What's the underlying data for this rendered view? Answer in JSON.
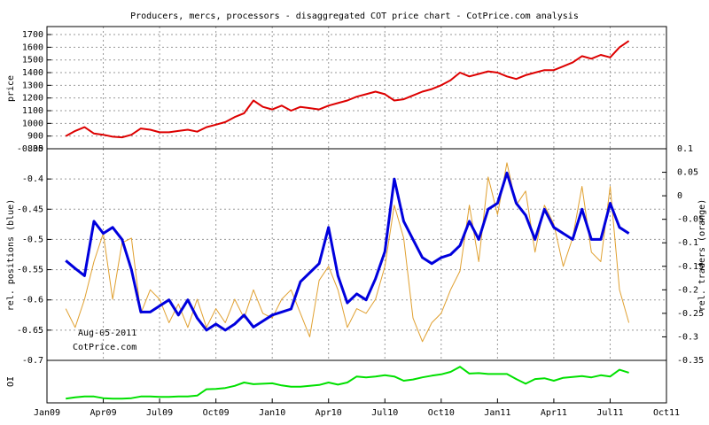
{
  "chart_data": [
    {
      "type": "line",
      "title": "Producers, mercs, processors - disaggregated COT price chart - CotPrice.com analysis",
      "ylabel": "price",
      "x": [
        1,
        1.5,
        2,
        2.5,
        3,
        3.5,
        4,
        4.5,
        5,
        5.5,
        6,
        6.5,
        7,
        7.5,
        8,
        8.5,
        9,
        9.5,
        10,
        10.5,
        11,
        11.5,
        12,
        12.5,
        13,
        13.5,
        14,
        14.5,
        15,
        15.5,
        16,
        16.5,
        17,
        17.5,
        18,
        18.5,
        19,
        19.5,
        20,
        20.5,
        21,
        21.5,
        22,
        22.5,
        23,
        23.5,
        24,
        24.5,
        25,
        25.5,
        26,
        26.5,
        27,
        27.5,
        28,
        28.5,
        29,
        29.5,
        30,
        30.5,
        31
      ],
      "xlim": [
        0,
        33
      ],
      "ylim": [
        800,
        1763
      ],
      "yticks": [
        800,
        900,
        1000,
        1100,
        1200,
        1300,
        1400,
        1500,
        1600,
        1700
      ],
      "grid": true,
      "series": [
        {
          "color": "#dd0000",
          "values": [
            900,
            940,
            970,
            920,
            910,
            895,
            890,
            910,
            960,
            950,
            930,
            930,
            940,
            950,
            935,
            970,
            990,
            1010,
            1050,
            1080,
            1180,
            1130,
            1110,
            1140,
            1100,
            1130,
            1120,
            1110,
            1140,
            1160,
            1180,
            1210,
            1230,
            1250,
            1230,
            1180,
            1190,
            1220,
            1250,
            1270,
            1300,
            1340,
            1400,
            1370,
            1390,
            1410,
            1400,
            1370,
            1350,
            1380,
            1400,
            1420,
            1420,
            1450,
            1480,
            1530,
            1510,
            1540,
            1520,
            1600,
            1650
          ]
        }
      ]
    },
    {
      "type": "line",
      "ylabel": "rel. positions (blue)",
      "y2label": "rel. traders (orange)",
      "annotations": [
        "Aug-05-2011",
        "CotPrice.com"
      ],
      "x": [
        1,
        1.5,
        2,
        2.5,
        3,
        3.5,
        4,
        4.5,
        5,
        5.5,
        6,
        6.5,
        7,
        7.5,
        8,
        8.5,
        9,
        9.5,
        10,
        10.5,
        11,
        11.5,
        12,
        12.5,
        13,
        13.5,
        14,
        14.5,
        15,
        15.5,
        16,
        16.5,
        17,
        17.5,
        18,
        18.5,
        19,
        19.5,
        20,
        20.5,
        21,
        21.5,
        22,
        22.5,
        23,
        23.5,
        24,
        24.5,
        25,
        25.5,
        26,
        26.5,
        27,
        27.5,
        28,
        28.5,
        29,
        29.5,
        30,
        30.5,
        31
      ],
      "xlim": [
        0,
        33
      ],
      "ylim": [
        -0.7,
        -0.35
      ],
      "yticks": [
        -0.7,
        -0.65,
        -0.6,
        -0.55,
        -0.5,
        -0.45,
        -0.4,
        -0.35
      ],
      "y2lim": [
        -0.35,
        0.1
      ],
      "y2ticks": [
        -0.35,
        -0.3,
        -0.25,
        -0.2,
        -0.15,
        -0.1,
        -0.05,
        0,
        0.05,
        0.1
      ],
      "grid": true,
      "series": [
        {
          "color": "#e0a030",
          "axis": "y2",
          "values": [
            -0.24,
            -0.28,
            -0.22,
            -0.14,
            -0.08,
            -0.22,
            -0.1,
            -0.09,
            -0.25,
            -0.2,
            -0.22,
            -0.27,
            -0.23,
            -0.28,
            -0.22,
            -0.28,
            -0.24,
            -0.27,
            -0.22,
            -0.26,
            -0.2,
            -0.25,
            -0.26,
            -0.22,
            -0.2,
            -0.25,
            -0.3,
            -0.18,
            -0.15,
            -0.2,
            -0.28,
            -0.24,
            -0.25,
            -0.22,
            -0.15,
            -0.02,
            -0.09,
            -0.26,
            -0.31,
            -0.27,
            -0.25,
            -0.2,
            -0.16,
            -0.02,
            -0.14,
            0.04,
            -0.04,
            0.07,
            -0.02,
            0.01,
            -0.12,
            -0.02,
            -0.06,
            -0.15,
            -0.09,
            0.02,
            -0.12,
            -0.14,
            0.02,
            -0.2,
            -0.27
          ]
        },
        {
          "color": "#0000dd",
          "values": [
            -0.535,
            -0.548,
            -0.56,
            -0.47,
            -0.49,
            -0.48,
            -0.5,
            -0.55,
            -0.62,
            -0.62,
            -0.61,
            -0.6,
            -0.625,
            -0.6,
            -0.63,
            -0.65,
            -0.64,
            -0.65,
            -0.64,
            -0.625,
            -0.645,
            -0.635,
            -0.625,
            -0.62,
            -0.615,
            -0.57,
            -0.555,
            -0.54,
            -0.48,
            -0.56,
            -0.605,
            -0.59,
            -0.6,
            -0.565,
            -0.52,
            -0.4,
            -0.47,
            -0.5,
            -0.53,
            -0.54,
            -0.53,
            -0.525,
            -0.51,
            -0.47,
            -0.5,
            -0.45,
            -0.44,
            -0.39,
            -0.44,
            -0.46,
            -0.5,
            -0.45,
            -0.48,
            -0.49,
            -0.5,
            -0.45,
            -0.5,
            -0.5,
            -0.44,
            -0.48,
            -0.49
          ]
        }
      ]
    },
    {
      "type": "line",
      "ylabel": "OI",
      "x": [
        1,
        1.5,
        2,
        2.5,
        3,
        3.5,
        4,
        4.5,
        5,
        5.5,
        6,
        6.5,
        7,
        7.5,
        8,
        8.5,
        9,
        9.5,
        10,
        10.5,
        11,
        11.5,
        12,
        12.5,
        13,
        13.5,
        14,
        14.5,
        15,
        15.5,
        16,
        16.5,
        17,
        17.5,
        18,
        18.5,
        19,
        19.5,
        20,
        20.5,
        21,
        21.5,
        22,
        22.5,
        23,
        23.5,
        24,
        24.5,
        25,
        25.5,
        26,
        26.5,
        27,
        27.5,
        28,
        28.5,
        29,
        29.5,
        30,
        30.5,
        31
      ],
      "xlim": [
        0,
        33
      ],
      "ylim": [
        0,
        100
      ],
      "xticks": [
        {
          "value": 0,
          "label": "Jan09"
        },
        {
          "value": 3,
          "label": "Apr09"
        },
        {
          "value": 6,
          "label": "Jul09"
        },
        {
          "value": 9,
          "label": "Oct09"
        },
        {
          "value": 12,
          "label": "Jan10"
        },
        {
          "value": 15,
          "label": "Apr10"
        },
        {
          "value": 18,
          "label": "Jul10"
        },
        {
          "value": 21,
          "label": "Oct10"
        },
        {
          "value": 24,
          "label": "Jan11"
        },
        {
          "value": 27,
          "label": "Apr11"
        },
        {
          "value": 30,
          "label": "Jul11"
        },
        {
          "value": 33,
          "label": "Oct11"
        }
      ],
      "grid": false,
      "series": [
        {
          "color": "#00e000",
          "values": [
            10,
            13,
            15,
            15,
            11,
            10,
            10,
            11,
            15,
            15,
            14,
            14,
            15,
            15,
            17,
            32,
            33,
            35,
            40,
            48,
            44,
            45,
            46,
            41,
            38,
            38,
            40,
            42,
            48,
            43,
            48,
            62,
            60,
            62,
            65,
            62,
            52,
            55,
            60,
            64,
            67,
            73,
            85,
            69,
            70,
            68,
            68,
            68,
            56,
            45,
            56,
            58,
            52,
            59,
            61,
            63,
            60,
            65,
            62,
            78,
            71
          ]
        }
      ]
    }
  ]
}
